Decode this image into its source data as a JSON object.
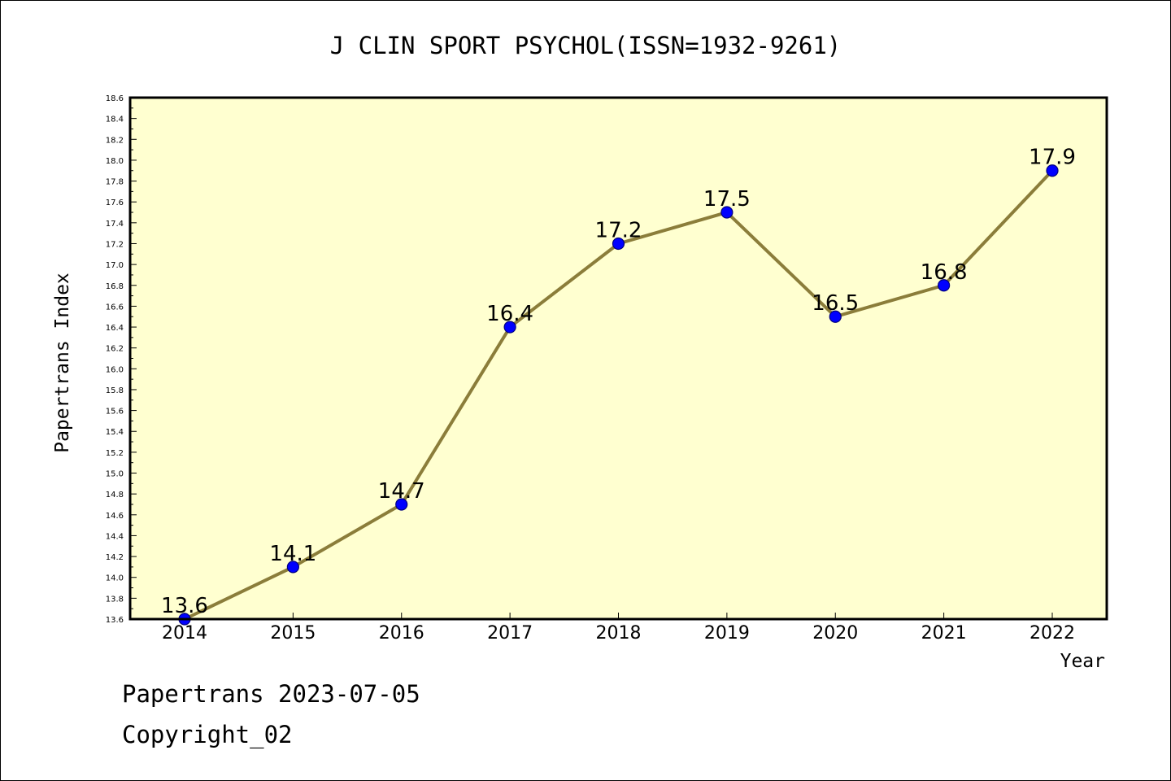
{
  "chart_data": {
    "type": "line",
    "title": "J CLIN SPORT PSYCHOL(ISSN=1932-9261)",
    "xlabel": "Year",
    "ylabel": "Papertrans Index",
    "categories": [
      "2014",
      "2015",
      "2016",
      "2017",
      "2018",
      "2019",
      "2020",
      "2021",
      "2022"
    ],
    "values": [
      13.6,
      14.1,
      14.7,
      16.4,
      17.2,
      17.5,
      16.5,
      16.8,
      17.9
    ],
    "data_labels": [
      "13.6",
      "14.1",
      "14.7",
      "16.4",
      "17.2",
      "17.5",
      "16.5",
      "16.8",
      "17.9"
    ],
    "ylim": [
      13.6,
      18.6
    ],
    "yticks": [
      "13.6",
      "13.8",
      "14.0",
      "14.2",
      "14.4",
      "14.6",
      "14.8",
      "15.0",
      "15.2",
      "15.4",
      "15.6",
      "15.8",
      "16.0",
      "16.2",
      "16.4",
      "16.6",
      "16.8",
      "17.0",
      "17.2",
      "17.4",
      "17.6",
      "17.8",
      "18.0",
      "18.2",
      "18.4",
      "18.6"
    ],
    "grid": false,
    "legend": "none",
    "colors": {
      "plot_background": "#ffffd0",
      "line": "#8b7d3a",
      "marker_fill": "#0000ff",
      "marker_stroke": "#000080",
      "axes": "#000000"
    }
  },
  "footer": {
    "line1": "Papertrans 2023-07-05",
    "line2": "Copyright_02"
  }
}
